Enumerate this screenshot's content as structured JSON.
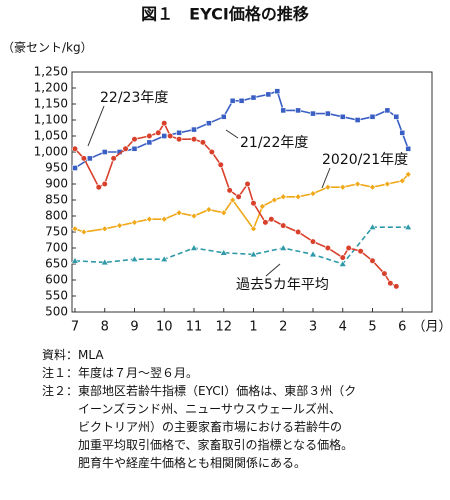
{
  "chart_data": {
    "type": "line",
    "title": "図１　EYCI価格の推移",
    "y_label": "（豪セント/kg）",
    "xlim": [
      -0.1,
      12
    ],
    "ylim": [
      500,
      1250
    ],
    "xticks": [
      {
        "value": 0,
        "label": "7"
      },
      {
        "value": 1,
        "label": "8"
      },
      {
        "value": 2,
        "label": "9"
      },
      {
        "value": 3,
        "label": "10"
      },
      {
        "value": 4,
        "label": "11"
      },
      {
        "value": 5,
        "label": "12"
      },
      {
        "value": 6,
        "label": "1"
      },
      {
        "value": 7,
        "label": "2"
      },
      {
        "value": 8,
        "label": "3"
      },
      {
        "value": 9,
        "label": "4"
      },
      {
        "value": 10,
        "label": "5"
      },
      {
        "value": 11,
        "label": "6"
      },
      {
        "value": 12,
        "label": "（月）"
      }
    ],
    "yticks": [
      500,
      550,
      600,
      650,
      700,
      750,
      800,
      850,
      900,
      950,
      {
        "value": 1000,
        "label": "1,000"
      },
      {
        "value": 1050,
        "label": "1,050"
      },
      {
        "value": 1100,
        "label": "1,100"
      },
      {
        "value": 1150,
        "label": "1,150"
      },
      {
        "value": 1200,
        "label": "1,200"
      },
      {
        "value": 1250,
        "label": "1,250"
      }
    ],
    "grid": false,
    "series": [
      {
        "name": "21/22年度",
        "color": "#3a5fc4",
        "marker": "square",
        "x": [
          0,
          0.5,
          1,
          1.5,
          2,
          2.5,
          3,
          3.5,
          4,
          4.5,
          5,
          5.3,
          5.6,
          6,
          6.5,
          6.8,
          7,
          7.5,
          8,
          8.5,
          9,
          9.5,
          10,
          10.5,
          10.8,
          11,
          11.2
        ],
        "values": [
          950,
          980,
          1000,
          1000,
          1010,
          1030,
          1050,
          1060,
          1070,
          1090,
          1110,
          1160,
          1160,
          1170,
          1180,
          1190,
          1130,
          1130,
          1120,
          1120,
          1110,
          1100,
          1110,
          1130,
          1110,
          1060,
          1010
        ]
      },
      {
        "name": "2020/21年度",
        "color": "#f0a818",
        "marker": "diamond",
        "x": [
          0,
          0.3,
          1,
          1.5,
          2,
          2.5,
          3,
          3.5,
          4,
          4.5,
          5,
          5.3,
          6,
          6.3,
          6.7,
          7,
          7.5,
          8,
          8.5,
          9,
          9.5,
          10,
          10.5,
          11,
          11.2
        ],
        "values": [
          760,
          750,
          760,
          770,
          780,
          790,
          790,
          810,
          800,
          820,
          810,
          850,
          760,
          830,
          850,
          860,
          860,
          870,
          890,
          890,
          900,
          890,
          900,
          910,
          930
        ]
      },
      {
        "name": "過去5カ年平均",
        "color": "#2e9aa8",
        "marker": "triangle",
        "dashed": true,
        "x": [
          0,
          1,
          2,
          3,
          4,
          5,
          6,
          7,
          8,
          9,
          10,
          11.2
        ],
        "values": [
          660,
          655,
          665,
          665,
          700,
          685,
          680,
          700,
          680,
          650,
          765,
          765
        ]
      },
      {
        "name": "22/23年度",
        "color": "#d9402b",
        "marker": "circle",
        "x": [
          0,
          0.3,
          0.8,
          1,
          1.3,
          1.7,
          2,
          2.5,
          2.8,
          3,
          3.2,
          3.5,
          4,
          4.3,
          4.6,
          4.9,
          5.2,
          5.5,
          5.8,
          6,
          6.4,
          6.6,
          7,
          7.5,
          8,
          8.5,
          9,
          9.2,
          9.6,
          10,
          10.4,
          10.6,
          10.8
        ],
        "values": [
          1010,
          980,
          890,
          900,
          980,
          1010,
          1040,
          1050,
          1060,
          1090,
          1050,
          1040,
          1040,
          1030,
          1000,
          960,
          880,
          860,
          900,
          840,
          780,
          790,
          770,
          750,
          720,
          700,
          670,
          700,
          690,
          660,
          620,
          590,
          580
        ]
      }
    ]
  },
  "notes": [
    {
      "label": "資料：",
      "lines": [
        "MLA"
      ]
    },
    {
      "label": "注１：",
      "lines": [
        "年度は７月～翌６月。"
      ]
    },
    {
      "label": "注２：",
      "lines": [
        "東部地区若齢牛指標（EYCI）価格は、東部３州（ク",
        "イーンズランド州、ニューサウスウェールズ州、",
        "ビクトリア州）の主要家畜市場における若齢牛の",
        "加重平均取引価格で、家畜取引の指標となる価格。",
        "肥育牛や経産牛価格とも相関関係にある。"
      ]
    }
  ]
}
